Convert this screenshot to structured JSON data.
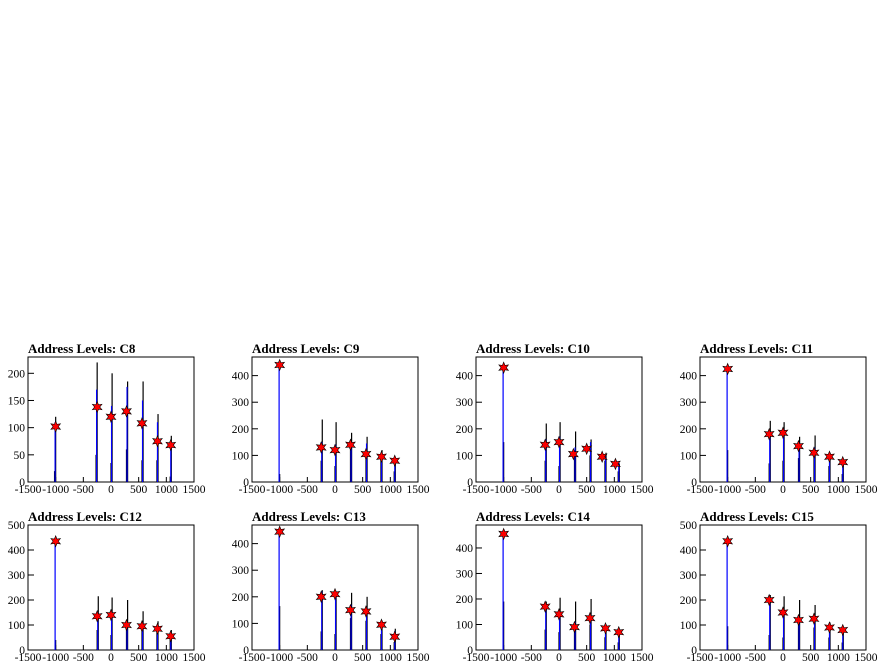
{
  "chart_data": [
    {
      "type": "histogram",
      "title": "Address Levels: C8",
      "xlim": [
        -1500,
        1500
      ],
      "ylim": [
        0,
        230
      ],
      "xticks": [
        -1500,
        -1000,
        -500,
        0,
        500,
        1000,
        1500
      ],
      "xtick_labels": [
        "-1500",
        "-1000",
        "-500",
        "0",
        "500",
        "1000",
        "1500"
      ],
      "yticks": [
        0,
        50,
        100,
        150,
        200
      ],
      "series": [
        {
          "color": "#000000",
          "x": [
            -1020,
            -1000,
            -270,
            -250,
            0,
            20,
            280,
            300,
            560,
            580,
            830,
            850,
            1070,
            1090
          ],
          "values": [
            20,
            120,
            50,
            220,
            35,
            200,
            60,
            185,
            40,
            185,
            40,
            125,
            10,
            85
          ]
        },
        {
          "color": "#0000ff",
          "x": [
            -1010,
            -260,
            10,
            290,
            570,
            840,
            1080
          ],
          "values": [
            110,
            170,
            140,
            175,
            150,
            110,
            75
          ]
        }
      ],
      "markers": {
        "x": [
          -1000,
          -250,
          0,
          280,
          560,
          840,
          1080
        ],
        "y": [
          102,
          138,
          120,
          130,
          108,
          75,
          68
        ]
      }
    },
    {
      "type": "histogram",
      "title": "Address Levels: C9",
      "xlim": [
        -1500,
        1500
      ],
      "ylim": [
        0,
        470
      ],
      "xticks": [
        -1500,
        -1000,
        -500,
        0,
        500,
        1000,
        1500
      ],
      "xtick_labels": [
        "-1500",
        "-1000",
        "-500",
        "0",
        "500",
        "1000",
        "1500"
      ],
      "yticks": [
        0,
        100,
        200,
        300,
        400
      ],
      "series": [
        {
          "color": "#000000",
          "x": [
            -1000,
            -250,
            -230,
            0,
            20,
            280,
            300,
            560,
            580,
            830,
            850,
            1070,
            1090
          ],
          "values": [
            30,
            80,
            235,
            60,
            225,
            120,
            185,
            110,
            170,
            90,
            120,
            40,
            80
          ]
        },
        {
          "color": "#0000ff",
          "x": [
            -1010,
            -240,
            10,
            290,
            570,
            840,
            1080
          ],
          "values": [
            440,
            150,
            140,
            150,
            145,
            100,
            80
          ]
        }
      ],
      "markers": {
        "x": [
          -1000,
          -250,
          0,
          280,
          560,
          840,
          1080
        ],
        "y": [
          440,
          130,
          120,
          140,
          105,
          95,
          80
        ]
      }
    },
    {
      "type": "histogram",
      "title": "Address Levels: C10",
      "xlim": [
        -1500,
        1500
      ],
      "ylim": [
        0,
        470
      ],
      "xticks": [
        -1500,
        -1000,
        -500,
        0,
        500,
        1000,
        1500
      ],
      "xtick_labels": [
        "-1500",
        "-1000",
        "-500",
        "0",
        "500",
        "1000",
        "1500"
      ],
      "yticks": [
        0,
        100,
        200,
        300,
        400
      ],
      "series": [
        {
          "color": "#000000",
          "x": [
            -1000,
            -250,
            -230,
            0,
            20,
            280,
            300,
            560,
            580,
            830,
            850,
            1070,
            1090
          ],
          "values": [
            150,
            80,
            220,
            60,
            225,
            110,
            190,
            100,
            160,
            80,
            110,
            40,
            70
          ]
        },
        {
          "color": "#0000ff",
          "x": [
            -1010,
            -240,
            10,
            290,
            570,
            840,
            1080
          ],
          "values": [
            430,
            160,
            170,
            130,
            150,
            95,
            70
          ]
        }
      ],
      "markers": {
        "x": [
          -1000,
          -250,
          0,
          260,
          500,
          780,
          1020
        ],
        "y": [
          430,
          140,
          150,
          105,
          125,
          95,
          68
        ]
      }
    },
    {
      "type": "histogram",
      "title": "Address Levels: C11",
      "xlim": [
        -1500,
        1500
      ],
      "ylim": [
        0,
        470
      ],
      "xticks": [
        -1500,
        -1000,
        -500,
        0,
        500,
        1000,
        1500
      ],
      "xtick_labels": [
        "-1500",
        "-1000",
        "-500",
        "0",
        "500",
        "1000",
        "1500"
      ],
      "yticks": [
        0,
        100,
        200,
        300,
        400
      ],
      "series": [
        {
          "color": "#000000",
          "x": [
            -1000,
            -250,
            -230,
            0,
            20,
            280,
            300,
            560,
            580,
            830,
            850,
            1070,
            1090
          ],
          "values": [
            120,
            70,
            230,
            80,
            225,
            90,
            170,
            100,
            175,
            60,
            110,
            30,
            80
          ]
        },
        {
          "color": "#0000ff",
          "x": [
            -1010,
            -240,
            10,
            290,
            570,
            840,
            1080
          ],
          "values": [
            430,
            190,
            200,
            150,
            130,
            100,
            80
          ]
        }
      ],
      "markers": {
        "x": [
          -1000,
          -250,
          0,
          280,
          560,
          840,
          1080
        ],
        "y": [
          425,
          180,
          185,
          135,
          110,
          95,
          75
        ]
      }
    },
    {
      "type": "histogram",
      "title": "Address Levels: C12",
      "xlim": [
        -1500,
        1500
      ],
      "ylim": [
        0,
        500
      ],
      "xticks": [
        -1500,
        -1000,
        -500,
        0,
        500,
        1000,
        1500
      ],
      "xtick_labels": [
        "-1500",
        "-1000",
        "-500",
        "0",
        "500",
        "1000",
        "1500"
      ],
      "yticks": [
        0,
        100,
        200,
        300,
        400,
        500
      ],
      "series": [
        {
          "color": "#000000",
          "x": [
            -1000,
            -250,
            -230,
            0,
            20,
            280,
            300,
            560,
            580,
            830,
            850,
            1070,
            1090
          ],
          "values": [
            40,
            80,
            215,
            60,
            210,
            110,
            200,
            110,
            155,
            70,
            115,
            40,
            80
          ]
        },
        {
          "color": "#0000ff",
          "x": [
            -1010,
            -240,
            10,
            290,
            570,
            840,
            1080
          ],
          "values": [
            440,
            150,
            150,
            110,
            110,
            90,
            70
          ]
        }
      ],
      "markers": {
        "x": [
          -1000,
          -250,
          0,
          280,
          560,
          840,
          1080
        ],
        "y": [
          435,
          135,
          140,
          100,
          95,
          85,
          55
        ]
      }
    },
    {
      "type": "histogram",
      "title": "Address Levels: C13",
      "xlim": [
        -1500,
        1500
      ],
      "ylim": [
        0,
        470
      ],
      "xticks": [
        -1500,
        -1000,
        -500,
        0,
        500,
        1000,
        1500
      ],
      "xtick_labels": [
        "-1500",
        "-1000",
        "-500",
        "0",
        "500",
        "1000",
        "1500"
      ],
      "yticks": [
        0,
        100,
        200,
        300,
        400
      ],
      "series": [
        {
          "color": "#000000",
          "x": [
            -1000,
            -250,
            -230,
            0,
            20,
            280,
            300,
            560,
            580,
            830,
            850,
            1070,
            1090
          ],
          "values": [
            165,
            70,
            225,
            60,
            210,
            120,
            215,
            110,
            200,
            60,
            110,
            30,
            80
          ]
        },
        {
          "color": "#0000ff",
          "x": [
            -1010,
            -240,
            10,
            290,
            570,
            840,
            1080
          ],
          "values": [
            440,
            220,
            220,
            170,
            160,
            110,
            70
          ]
        }
      ],
      "markers": {
        "x": [
          -1000,
          -250,
          0,
          280,
          560,
          840,
          1080
        ],
        "y": [
          445,
          200,
          210,
          150,
          145,
          95,
          50
        ]
      }
    },
    {
      "type": "histogram",
      "title": "Address Levels: C14",
      "xlim": [
        -1500,
        1500
      ],
      "ylim": [
        0,
        490
      ],
      "xticks": [
        -1500,
        -1000,
        -500,
        0,
        500,
        1000,
        1500
      ],
      "xtick_labels": [
        "-1500",
        "-1000",
        "-500",
        "0",
        "500",
        "1000",
        "1500"
      ],
      "yticks": [
        0,
        100,
        200,
        300,
        400
      ],
      "series": [
        {
          "color": "#000000",
          "x": [
            -1000,
            -250,
            -230,
            0,
            20,
            280,
            300,
            560,
            580,
            830,
            850,
            1070,
            1090
          ],
          "values": [
            190,
            80,
            190,
            70,
            205,
            90,
            190,
            100,
            200,
            50,
            100,
            30,
            70
          ]
        },
        {
          "color": "#0000ff",
          "x": [
            -1010,
            -240,
            10,
            290,
            570,
            840,
            1080
          ],
          "values": [
            450,
            180,
            150,
            110,
            140,
            100,
            80
          ]
        }
      ],
      "markers": {
        "x": [
          -1000,
          -250,
          0,
          280,
          560,
          840,
          1080
        ],
        "y": [
          455,
          170,
          140,
          90,
          125,
          85,
          70
        ]
      }
    },
    {
      "type": "histogram",
      "title": "Address Levels: C15",
      "xlim": [
        -1500,
        1500
      ],
      "ylim": [
        0,
        500
      ],
      "xticks": [
        -1500,
        -1000,
        -500,
        0,
        500,
        1000,
        1500
      ],
      "xtick_labels": [
        "-1500",
        "-1000",
        "-500",
        "0",
        "500",
        "1000",
        "1500"
      ],
      "yticks": [
        0,
        100,
        200,
        300,
        400,
        500
      ],
      "series": [
        {
          "color": "#000000",
          "x": [
            -1000,
            -250,
            -230,
            0,
            20,
            280,
            300,
            560,
            580,
            830,
            850,
            1070,
            1090
          ],
          "values": [
            95,
            60,
            220,
            50,
            215,
            100,
            200,
            90,
            180,
            50,
            110,
            30,
            80
          ]
        },
        {
          "color": "#0000ff",
          "x": [
            -1010,
            -240,
            10,
            290,
            570,
            840,
            1080
          ],
          "values": [
            435,
            200,
            160,
            130,
            140,
            100,
            90
          ]
        }
      ],
      "markers": {
        "x": [
          -1000,
          -250,
          0,
          280,
          560,
          840,
          1080
        ],
        "y": [
          435,
          200,
          150,
          120,
          125,
          90,
          80
        ]
      }
    }
  ]
}
